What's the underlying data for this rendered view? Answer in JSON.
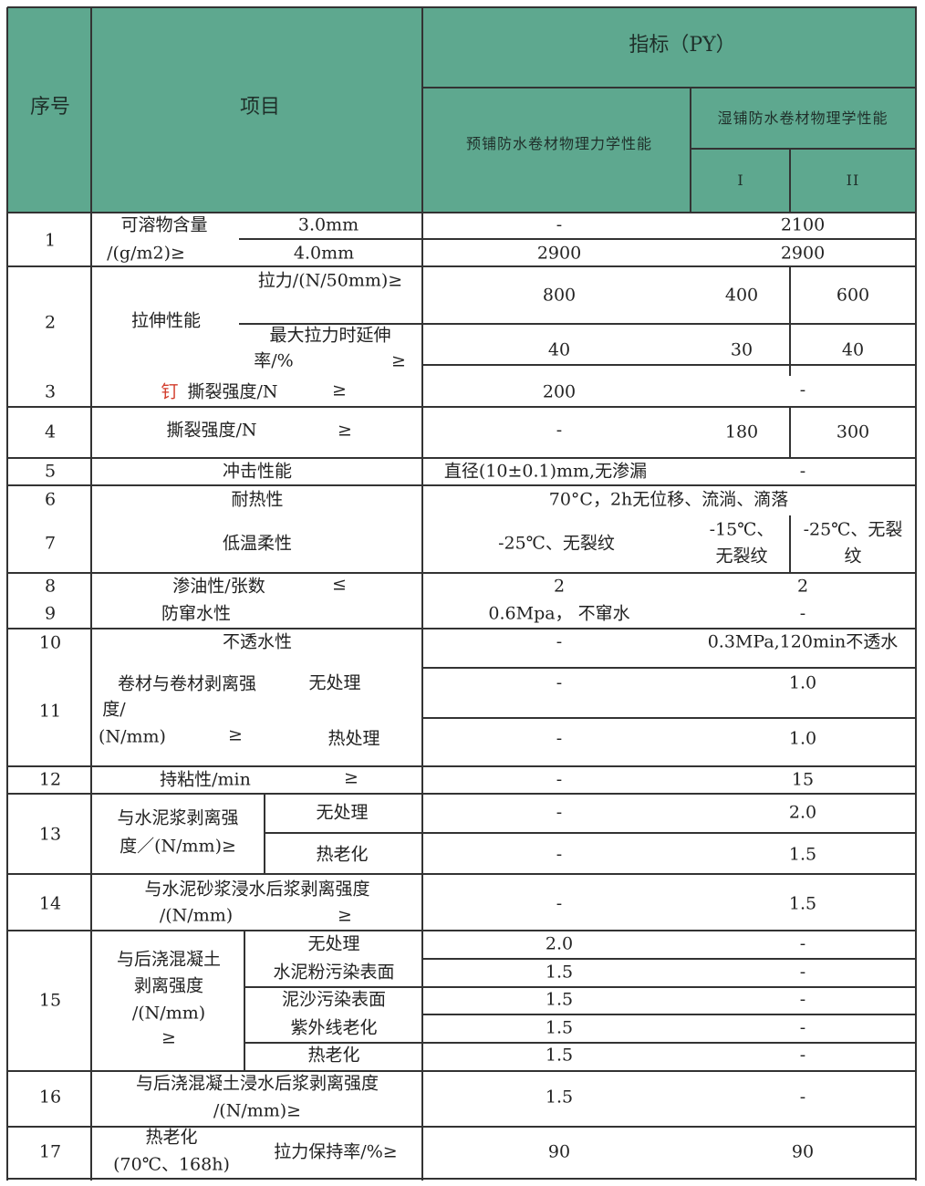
{
  "colors": {
    "header_bg": "#5ea88f",
    "grid": "#333333",
    "highlight": "#d23b2a"
  },
  "header": {
    "no": "序号",
    "item": "项目",
    "index": "指标（PY）",
    "pre": "预铺防水卷材物理力学性能",
    "wet": "湿铺防水卷材物理学性能",
    "wet_i": "I",
    "wet_ii": "II"
  },
  "rows": {
    "r1": {
      "no": "1",
      "a": "可溶物含量",
      "b": "/(g/m2)≥",
      "s1": "3.0mm",
      "s2": "4.0mm",
      "p1": "-",
      "w1": "2100",
      "p2": "2900",
      "w2": "2900"
    },
    "r2": {
      "no": "2",
      "a": "拉伸性能",
      "s1": "拉力/(N/50mm)≥",
      "s2a": "最大拉力时延伸",
      "s2b": "率/%",
      "s2c": "≥",
      "p1": "800",
      "i1": "400",
      "ii1": "600",
      "p2": "40",
      "i2": "30",
      "ii2": "40"
    },
    "r3": {
      "no": "3",
      "red": "钉",
      "a": "撕裂强度/N",
      "ge": "≥",
      "p": "200",
      "w": "-"
    },
    "r4": {
      "no": "4",
      "a": "撕裂强度/N",
      "ge": "≥",
      "p": "-",
      "i": "180",
      "ii": "300"
    },
    "r5": {
      "no": "5",
      "a": "冲击性能",
      "p": "直径(10±0.1)mm,无渗漏",
      "w": "-"
    },
    "r6": {
      "no": "6",
      "a": "耐热性",
      "v": "70°C，2h无位移、流淌、滴落"
    },
    "r7": {
      "no": "7",
      "a": "低温柔性",
      "p": "-25℃、无裂纹",
      "i1": "-15℃、",
      "i2": "无裂纹",
      "ii1": "-25℃、无裂",
      "ii2": "纹"
    },
    "r8": {
      "no": "8",
      "a": "渗油性/张数",
      "le": "≤",
      "p": "2",
      "w": "2"
    },
    "r9": {
      "no": "9",
      "a": "防窜水性",
      "p": "0.6Mpa， 不窜水",
      "w": "-"
    },
    "r10": {
      "no": "10",
      "a": "不透水性",
      "p": "-",
      "w": "0.3MPa,120min不透水"
    },
    "r11": {
      "no": "11",
      "a1": "卷材与卷材剥离强",
      "a2": "度/",
      "a3": "(N/mm)",
      "ge": "≥",
      "s1": "无处理",
      "s2": "热处理",
      "p1": "-",
      "w1": "1.0",
      "p2": "-",
      "w2": "1.0"
    },
    "r12": {
      "no": "12",
      "a": "持粘性/min",
      "ge": "≥",
      "p": "-",
      "w": "15"
    },
    "r13": {
      "no": "13",
      "a1": "与水泥浆剥离强",
      "a2": "度／(N/mm)≥",
      "s1": "无处理",
      "s2": "热老化",
      "p1": "-",
      "w1": "2.0",
      "p2": "-",
      "w2": "1.5"
    },
    "r14": {
      "no": "14",
      "a1": "与水泥砂浆浸水后浆剥离强度",
      "a2": "/(N/mm)",
      "ge": "≥",
      "p": "-",
      "w": "1.5"
    },
    "r15": {
      "no": "15",
      "a1": "与后浇混凝土",
      "a2": "剥离强度",
      "a3": "/(N/mm)",
      "a4": "≥",
      "subs": [
        {
          "s": "无处理",
          "p": "2.0",
          "w": "-"
        },
        {
          "s": "水泥粉污染表面",
          "p": "1.5",
          "w": "-"
        },
        {
          "s": "泥沙污染表面",
          "p": "1.5",
          "w": "-"
        },
        {
          "s": "紫外线老化",
          "p": "1.5",
          "w": "-"
        },
        {
          "s": "热老化",
          "p": "1.5",
          "w": "-"
        }
      ]
    },
    "r16": {
      "no": "16",
      "a1": "与后浇混凝土浸水后浆剥离强度",
      "a2": "/(N/mm)≥",
      "p": "1.5",
      "w": "-"
    },
    "r17": {
      "no": "17",
      "a1": "热老化",
      "a2": "(70℃、168h)",
      "s": "拉力保持率/%≥",
      "p": "90",
      "w": "90"
    }
  }
}
